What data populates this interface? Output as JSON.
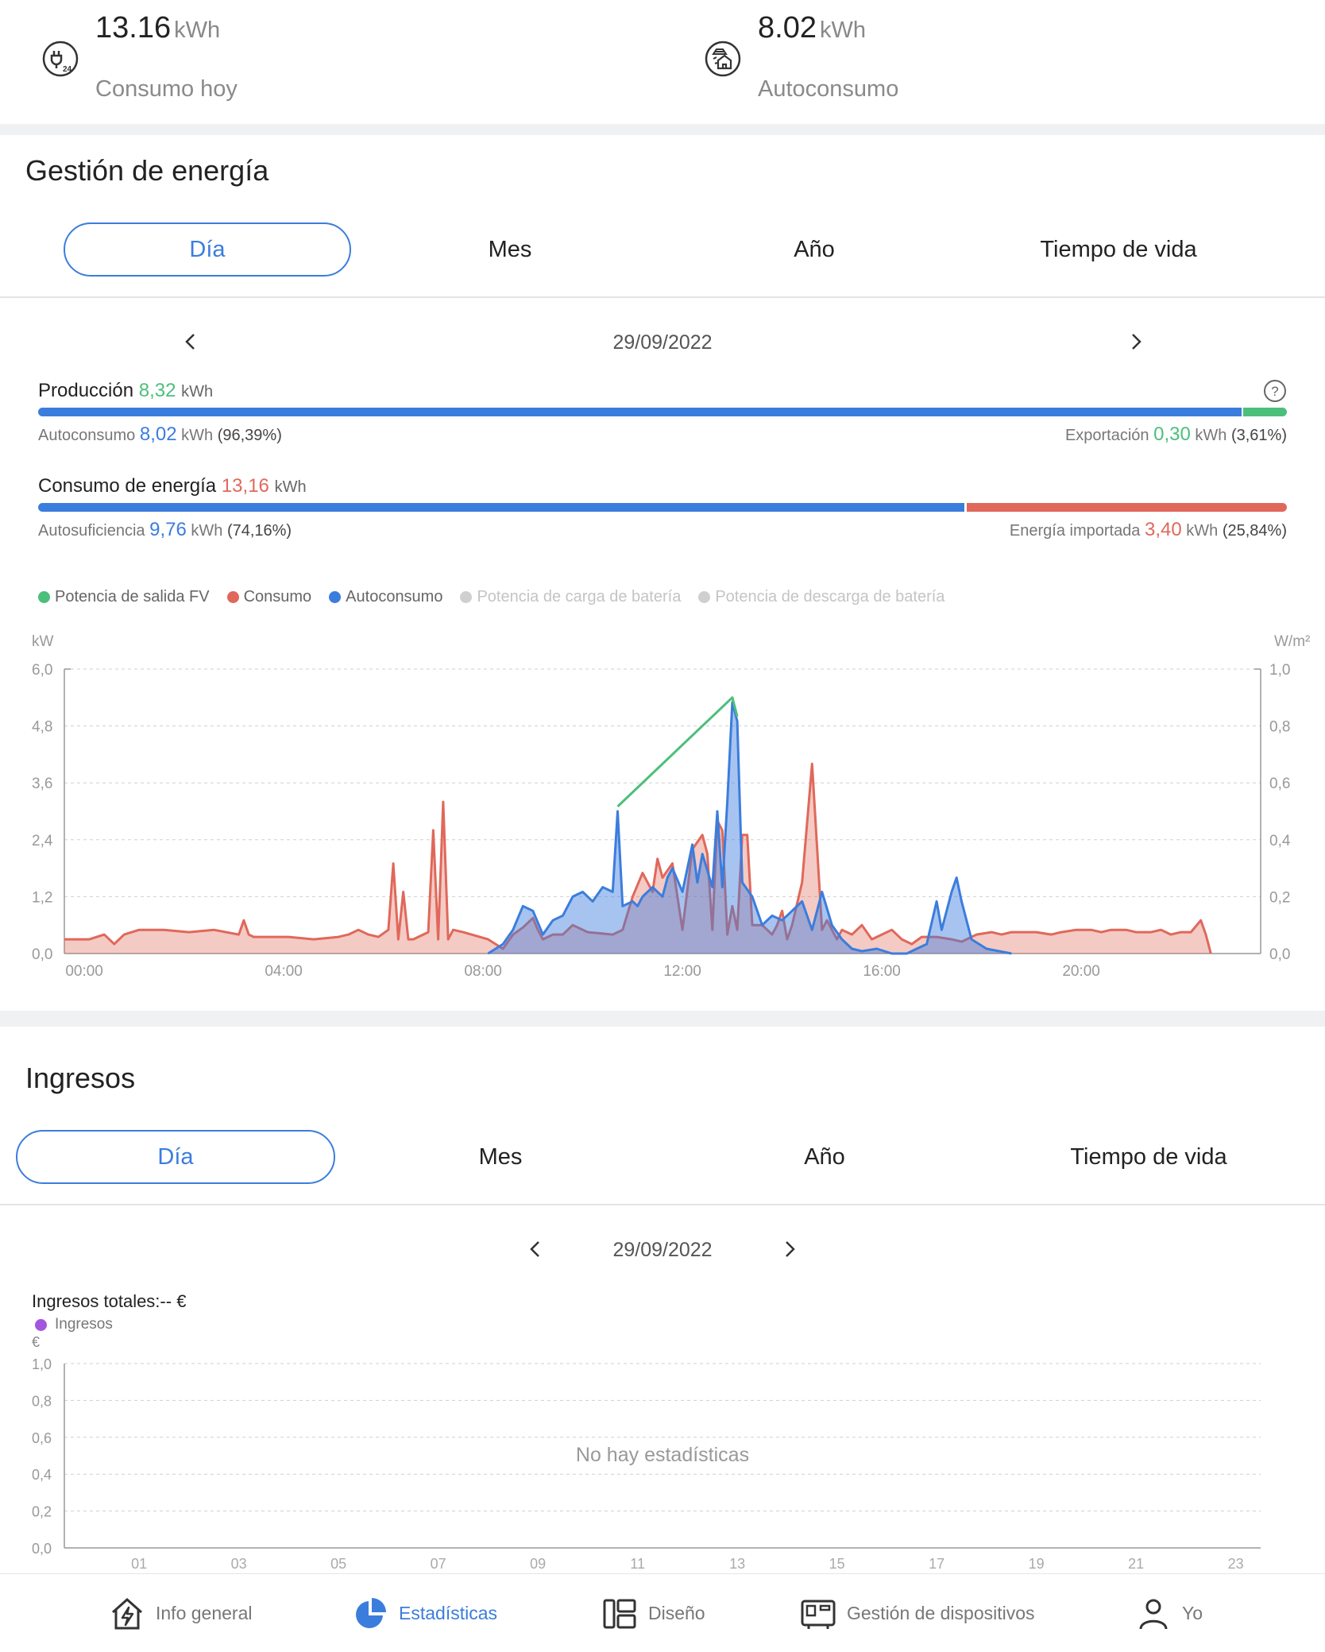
{
  "summary": {
    "consumption": {
      "value": "13.16",
      "unit": "kWh",
      "label": "Consumo hoy",
      "icon": "plug-24h-icon"
    },
    "self_consumption": {
      "value": "8.02",
      "unit": "kWh",
      "label": "Autoconsumo",
      "icon": "solar-house-icon"
    }
  },
  "energy": {
    "title": "Gestión de energía",
    "tabs": [
      "Día",
      "Mes",
      "Año",
      "Tiempo de vida"
    ],
    "active_tab": "Día",
    "date": "29/09/2022",
    "production": {
      "label": "Producción",
      "value": "8,32",
      "unit": "kWh",
      "self_label": "Autoconsumo",
      "self_value": "8,02",
      "self_unit": "kWh",
      "self_pct": "(96,39%)",
      "export_label": "Exportación",
      "export_value": "0,30",
      "export_unit": "kWh",
      "export_pct": "(3,61%)",
      "self_fraction": 0.9639
    },
    "consumption": {
      "label": "Consumo de energía",
      "value": "13,16",
      "unit": "kWh",
      "suff_label": "Autosuficiencia",
      "suff_value": "9,76",
      "suff_unit": "kWh",
      "suff_pct": "(74,16%)",
      "import_label": "Energía importada",
      "import_value": "3,40",
      "import_unit": "kWh",
      "import_pct": "(25,84%)",
      "suff_fraction": 0.7416
    },
    "legend": [
      {
        "name": "Potencia de salida FV",
        "color": "#4cbf7a",
        "enabled": true
      },
      {
        "name": "Consumo",
        "color": "#e0685a",
        "enabled": true
      },
      {
        "name": "Autoconsumo",
        "color": "#3b7ddd",
        "enabled": true
      },
      {
        "name": "Potencia de carga de batería",
        "color": "#c8c8c8",
        "enabled": false
      },
      {
        "name": "Potencia de descarga de batería",
        "color": "#c8c8c8",
        "enabled": false
      }
    ]
  },
  "income": {
    "title": "Ingresos",
    "tabs": [
      "Día",
      "Mes",
      "Año",
      "Tiempo de vida"
    ],
    "active_tab": "Día",
    "date": "29/09/2022",
    "total_label": "Ingresos totales:-- €",
    "legend": [
      {
        "name": "Ingresos",
        "color": "#a455e0"
      }
    ],
    "empty_text": "No hay estadísticas"
  },
  "nav": [
    {
      "label": "Info general",
      "icon": "home-bolt-icon",
      "active": false
    },
    {
      "label": "Estadísticas",
      "icon": "pie-chart-icon",
      "active": true
    },
    {
      "label": "Diseño",
      "icon": "layout-icon",
      "active": false
    },
    {
      "label": "Gestión de dispositivos",
      "icon": "devices-icon",
      "active": false
    },
    {
      "label": "Yo",
      "icon": "user-icon",
      "active": false
    }
  ],
  "chart_data": [
    {
      "type": "area",
      "xlabel": "",
      "ylabel": "kW",
      "y2label": "W/m²",
      "xlim": [
        0,
        24
      ],
      "ylim": [
        0,
        6.0
      ],
      "y2lim": [
        0,
        1.0
      ],
      "xticks": [
        "00:00",
        "04:00",
        "08:00",
        "12:00",
        "16:00",
        "20:00"
      ],
      "xtick_values": [
        0.4,
        4.4,
        8.4,
        12.4,
        16.4,
        20.4
      ],
      "yticks": [
        "0,0",
        "1,2",
        "2,4",
        "3,6",
        "4,8",
        "6,0"
      ],
      "y2ticks": [
        "0,0",
        "0,2",
        "0,4",
        "0,6",
        "0,8",
        "1,0"
      ],
      "grid": true,
      "series": [
        {
          "name": "Consumo",
          "color": "#e0685a",
          "x": [
            0,
            0.5,
            0.8,
            1.0,
            1.2,
            1.5,
            2.0,
            2.5,
            3.0,
            3.5,
            3.6,
            3.7,
            3.8,
            4.0,
            4.5,
            5.0,
            5.5,
            5.7,
            5.9,
            6.1,
            6.3,
            6.5,
            6.6,
            6.7,
            6.8,
            6.9,
            7.0,
            7.2,
            7.3,
            7.4,
            7.5,
            7.6,
            7.7,
            7.8,
            8.0,
            8.5,
            8.8,
            9.0,
            9.2,
            9.4,
            9.5,
            9.6,
            9.8,
            10.0,
            10.2,
            10.5,
            11.0,
            11.2,
            11.4,
            11.6,
            11.8,
            11.9,
            12.0,
            12.2,
            12.4,
            12.6,
            12.8,
            12.9,
            13.0,
            13.1,
            13.2,
            13.3,
            13.4,
            13.5,
            13.6,
            13.7,
            13.8,
            14.0,
            14.2,
            14.3,
            14.4,
            14.5,
            14.6,
            14.8,
            15.0,
            15.2,
            15.3,
            15.4,
            15.5,
            15.6,
            15.8,
            16.0,
            16.2,
            16.4,
            16.6,
            16.8,
            17.0,
            17.2,
            17.5,
            17.8,
            18.0,
            18.3,
            18.6,
            18.8,
            19.0,
            19.2,
            19.5,
            19.8,
            20.0,
            20.3,
            20.6,
            20.8,
            21.0,
            21.3,
            21.5,
            21.8,
            22.0,
            22.2,
            22.4,
            22.6,
            22.8,
            22.9,
            23.0
          ],
          "y": [
            0.3,
            0.3,
            0.4,
            0.2,
            0.4,
            0.5,
            0.5,
            0.45,
            0.5,
            0.4,
            0.7,
            0.4,
            0.35,
            0.35,
            0.35,
            0.3,
            0.35,
            0.4,
            0.5,
            0.4,
            0.35,
            0.5,
            1.9,
            0.3,
            1.3,
            0.3,
            0.3,
            0.4,
            0.45,
            2.6,
            0.3,
            3.2,
            0.3,
            0.5,
            0.45,
            0.3,
            0.1,
            0.4,
            0.55,
            0.75,
            0.5,
            0.3,
            0.4,
            0.4,
            0.6,
            0.45,
            0.4,
            0.5,
            1.2,
            1.7,
            1.3,
            2.0,
            1.6,
            1.9,
            0.5,
            2.2,
            2.5,
            2.1,
            0.5,
            2.8,
            2.6,
            0.4,
            1.0,
            0.5,
            2.5,
            2.5,
            0.6,
            0.6,
            0.4,
            0.6,
            0.9,
            0.3,
            0.6,
            1.5,
            4.0,
            0.5,
            0.7,
            0.5,
            0.3,
            0.5,
            0.4,
            0.6,
            0.3,
            0.4,
            0.5,
            0.3,
            0.2,
            0.35,
            0.35,
            0.3,
            0.25,
            0.4,
            0.45,
            0.4,
            0.45,
            0.45,
            0.45,
            0.4,
            0.45,
            0.5,
            0.5,
            0.45,
            0.5,
            0.5,
            0.45,
            0.45,
            0.5,
            0.4,
            0.45,
            0.45,
            0.7,
            0.4,
            0.0
          ]
        },
        {
          "name": "Autoconsumo",
          "color": "#3b7ddd",
          "x": [
            8.5,
            8.8,
            9.0,
            9.2,
            9.4,
            9.6,
            9.8,
            10.0,
            10.2,
            10.4,
            10.6,
            10.8,
            11.0,
            11.1,
            11.2,
            11.4,
            11.5,
            11.6,
            11.8,
            12.0,
            12.1,
            12.2,
            12.4,
            12.6,
            12.7,
            12.8,
            13.0,
            13.1,
            13.2,
            13.3,
            13.4,
            13.5,
            13.6,
            13.8,
            14.0,
            14.2,
            14.4,
            14.6,
            14.8,
            15.0,
            15.2,
            15.4,
            15.6,
            15.8,
            16.0,
            16.3,
            16.6,
            16.9,
            17.1,
            17.3,
            17.5,
            17.6,
            17.8,
            17.9,
            18.0,
            18.2,
            18.5,
            19.0
          ],
          "y": [
            0.0,
            0.2,
            0.5,
            1.0,
            0.9,
            0.4,
            0.7,
            0.8,
            1.2,
            1.3,
            1.1,
            1.4,
            1.3,
            3.0,
            1.0,
            1.1,
            1.0,
            1.2,
            1.4,
            1.2,
            1.6,
            1.8,
            1.3,
            2.3,
            1.5,
            2.1,
            1.4,
            3.0,
            1.4,
            3.2,
            5.3,
            4.9,
            1.5,
            1.2,
            0.6,
            0.8,
            0.7,
            0.9,
            1.1,
            0.5,
            1.3,
            0.6,
            0.3,
            0.1,
            0.05,
            0.1,
            0.0,
            0.0,
            0.1,
            0.2,
            1.1,
            0.5,
            1.3,
            1.6,
            1.1,
            0.3,
            0.1,
            0.0
          ]
        },
        {
          "name": "Potencia de salida FV",
          "color": "#4cbf7a",
          "x": [
            11.1,
            13.4,
            13.5
          ],
          "y": [
            3.1,
            5.4,
            5.0
          ]
        }
      ]
    },
    {
      "type": "line",
      "ylabel": "€",
      "ylim": [
        0,
        1.0
      ],
      "yticks": [
        "0,0",
        "0,2",
        "0,4",
        "0,6",
        "0,8",
        "1,0"
      ],
      "xticks": [
        "01",
        "03",
        "05",
        "07",
        "09",
        "11",
        "13",
        "15",
        "17",
        "19",
        "21",
        "23"
      ],
      "grid": true,
      "series": [
        {
          "name": "Ingresos",
          "color": "#a455e0",
          "values": []
        }
      ]
    }
  ]
}
